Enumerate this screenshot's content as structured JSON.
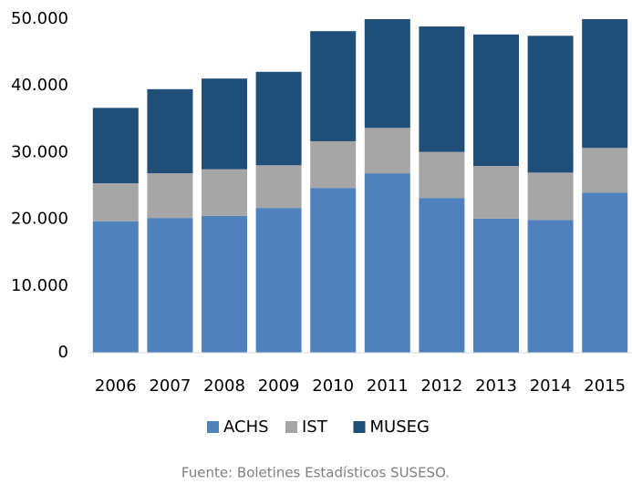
{
  "chart_data": {
    "type": "stacked_bar",
    "categories": [
      "2006",
      "2007",
      "2008",
      "2009",
      "2010",
      "2011",
      "2012",
      "2013",
      "2014",
      "2015"
    ],
    "series": [
      {
        "name": "ACHS",
        "color": "#4f81bd",
        "values": [
          19700,
          20200,
          20500,
          21700,
          24700,
          26900,
          23200,
          20100,
          19900,
          24000
        ]
      },
      {
        "name": "IST",
        "color": "#a6a6a6",
        "values": [
          5700,
          6700,
          7000,
          6400,
          7000,
          6800,
          6900,
          7900,
          7100,
          6700
        ]
      },
      {
        "name": "MUSEG",
        "color": "#1f4e79",
        "values": [
          11300,
          12600,
          13600,
          14000,
          16500,
          16300,
          18800,
          19700,
          20500,
          19300
        ]
      }
    ],
    "ylim": [
      0,
      50000
    ],
    "yticks": [
      0,
      {
        "value": 10000,
        "label": "10.000"
      },
      {
        "value": 20000,
        "label": "20.000"
      },
      {
        "value": 30000,
        "label": "30.000"
      },
      {
        "value": 40000,
        "label": "40.000"
      },
      {
        "value": 50000,
        "label": "50.000"
      }
    ],
    "grid": false,
    "legend": "bottom",
    "source": "Fuente: Boletines Estadísticos SUSESO."
  }
}
